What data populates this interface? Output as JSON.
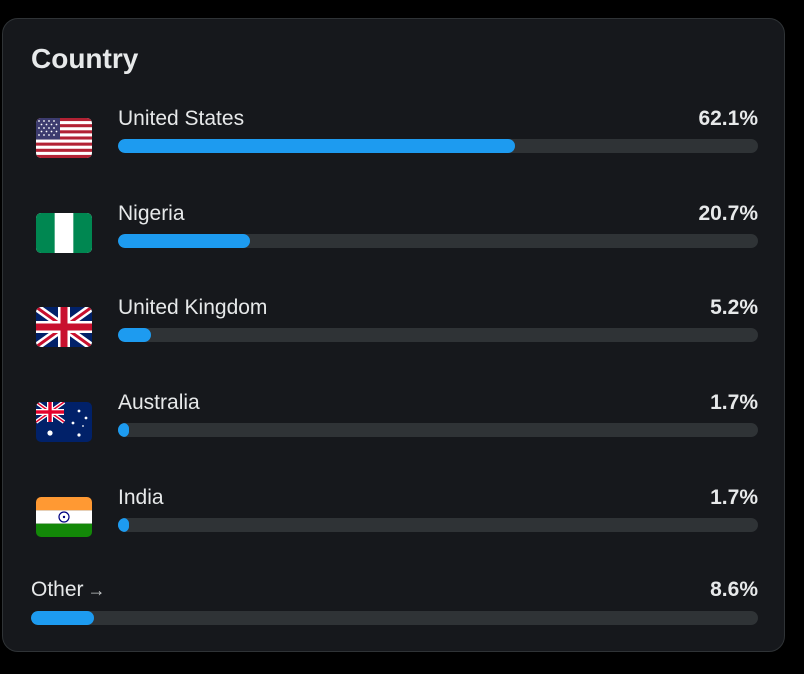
{
  "card": {
    "title": "Country",
    "countries": [
      {
        "name": "United States",
        "percent_label": "62.1%",
        "percent": 62.1,
        "flag_icon": "us-flag-icon"
      },
      {
        "name": "Nigeria",
        "percent_label": "20.7%",
        "percent": 20.7,
        "flag_icon": "nigeria-flag-icon"
      },
      {
        "name": "United Kingdom",
        "percent_label": "5.2%",
        "percent": 5.2,
        "flag_icon": "uk-flag-icon"
      },
      {
        "name": "Australia",
        "percent_label": "1.7%",
        "percent": 1.7,
        "flag_icon": "australia-flag-icon"
      },
      {
        "name": "India",
        "percent_label": "1.7%",
        "percent": 1.7,
        "flag_icon": "india-flag-icon"
      }
    ],
    "other": {
      "label": "Other",
      "arrow": "→",
      "percent_label": "8.6%",
      "percent": 8.6
    }
  },
  "colors": {
    "background": "#000000",
    "panel": "#16181c",
    "track": "#2f3336",
    "bar_fill": "#1d9bf0",
    "text": "#e7e9ea"
  }
}
